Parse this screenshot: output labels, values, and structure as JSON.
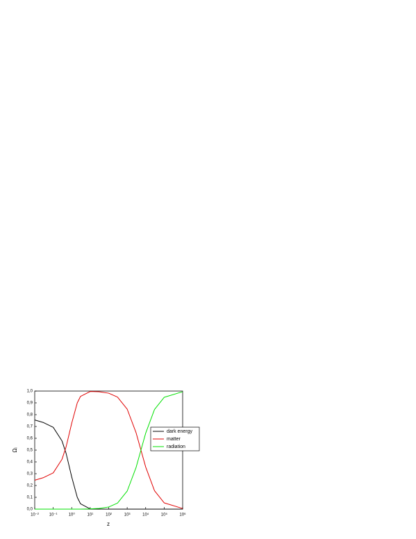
{
  "chart_data": {
    "type": "line",
    "x_label": "z",
    "y_label": "Ωᵢ",
    "x": [
      0.01,
      0.03,
      0.1,
      0.3,
      0.5,
      1,
      2,
      3,
      10,
      30,
      100,
      300,
      1000,
      3000,
      5500,
      10000,
      30000,
      100000,
      1000000
    ],
    "series": [
      {
        "name": "dark energy",
        "color": "#000000",
        "values": [
          0.755,
          0.733,
          0.693,
          0.577,
          0.471,
          0.273,
          0.1,
          0.045,
          0.002,
          0.0001,
          0,
          0,
          0,
          0,
          0,
          0,
          0,
          0,
          0
        ]
      },
      {
        "name": "matter",
        "color": "#e00000",
        "values": [
          0.245,
          0.267,
          0.307,
          0.423,
          0.529,
          0.727,
          0.9,
          0.955,
          0.996,
          0.994,
          0.982,
          0.949,
          0.847,
          0.649,
          0.502,
          0.357,
          0.156,
          0.053,
          0.0055
        ]
      },
      {
        "name": "radiation",
        "color": "#00e000",
        "values": [
          0,
          0,
          0,
          0,
          0,
          0,
          0,
          0,
          0.002,
          0.0056,
          0.018,
          0.051,
          0.153,
          0.351,
          0.498,
          0.643,
          0.844,
          0.947,
          0.9945
        ]
      }
    ],
    "log_x": true,
    "xlim": [
      0.01,
      1000000
    ],
    "xticks": [
      {
        "value": 0.01,
        "label": "10⁻²"
      },
      {
        "value": 0.1,
        "label": "10⁻¹"
      },
      {
        "value": 1,
        "label": "10⁰"
      },
      {
        "value": 10,
        "label": "10¹"
      },
      {
        "value": 100,
        "label": "10²"
      },
      {
        "value": 1000,
        "label": "10³"
      },
      {
        "value": 10000,
        "label": "10⁴"
      },
      {
        "value": 100000,
        "label": "10⁵"
      },
      {
        "value": 1000000,
        "label": "10⁶"
      }
    ],
    "ylim": [
      0,
      1
    ],
    "yticks": [
      {
        "value": 0,
        "label": "0,0"
      },
      {
        "value": 0.1,
        "label": "0,1"
      },
      {
        "value": 0.2,
        "label": "0,2"
      },
      {
        "value": 0.3,
        "label": "0,3"
      },
      {
        "value": 0.4,
        "label": "0,4"
      },
      {
        "value": 0.5,
        "label": "0,5"
      },
      {
        "value": 0.6,
        "label": "0,6"
      },
      {
        "value": 0.7,
        "label": "0,7"
      },
      {
        "value": 0.8,
        "label": "0,8"
      },
      {
        "value": 0.9,
        "label": "0,9"
      },
      {
        "value": 1,
        "label": "1,0"
      }
    ],
    "legend": "upper right"
  }
}
